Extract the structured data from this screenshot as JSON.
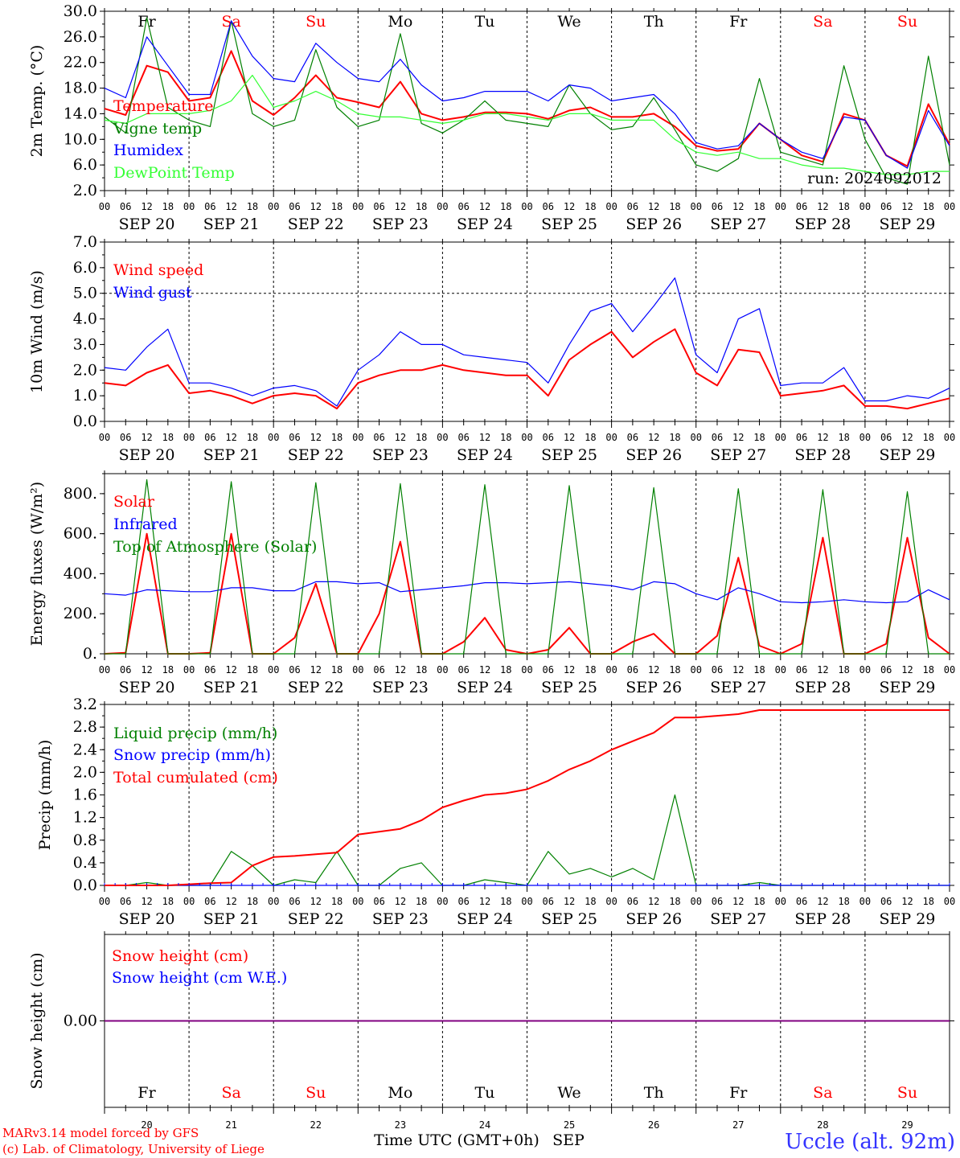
{
  "days": [
    "Fr",
    "Sa",
    "Su",
    "Mo",
    "Tu",
    "We",
    "Th",
    "Fr",
    "Sa",
    "Su"
  ],
  "weekend_flags": [
    false,
    true,
    true,
    false,
    false,
    false,
    false,
    false,
    true,
    true
  ],
  "date_labels": [
    "SEP 20",
    "SEP 21",
    "SEP 22",
    "SEP 23",
    "SEP 24",
    "SEP 25",
    "SEP 26",
    "SEP 27",
    "SEP 28",
    "SEP 29"
  ],
  "day_numbers": [
    "20",
    "21",
    "22",
    "23",
    "24",
    "25",
    "26",
    "27",
    "28",
    "29"
  ],
  "hour_ticks": [
    "00",
    "06",
    "12",
    "18"
  ],
  "colors": {
    "red": "#ff0000",
    "green": "#008000",
    "blue": "#0000ff",
    "lightgreen": "#33ff33",
    "weekend": "#ff0000",
    "weekday": "#000000",
    "purple": "#800080",
    "location": "#3333ff"
  },
  "footer": {
    "credit1": "MARv3.14 model forced by GFS",
    "credit2": "(c) Lab. of Climatology, University of Liege",
    "xlabel": "Time UTC (GMT+0h)",
    "month": "SEP",
    "location": "Uccle (alt. 92m)"
  },
  "chart_data": [
    {
      "type": "line",
      "ylabel": "2m Temp. (°C)",
      "ylim": [
        2,
        30
      ],
      "yticks": [
        "30.0",
        "26.0",
        "22.0",
        "18.0",
        "14.0",
        "10.0",
        "6.0",
        "2.0"
      ],
      "run_label": "run: 2024092012",
      "x_unit": "hours since 2024-09-20 00 UTC",
      "x": [
        0,
        6,
        12,
        18,
        24,
        30,
        36,
        42,
        48,
        54,
        60,
        66,
        72,
        78,
        84,
        90,
        96,
        102,
        108,
        114,
        120,
        126,
        132,
        138,
        144,
        150,
        156,
        162,
        168,
        174,
        180,
        186,
        192,
        198,
        204,
        210,
        216,
        222,
        228,
        234,
        240
      ],
      "series": [
        {
          "name": "Temperature",
          "color": "red",
          "values": [
            14.8,
            13.8,
            21.5,
            20.5,
            16.0,
            16.5,
            23.8,
            16.0,
            13.8,
            16.5,
            20.0,
            16.5,
            15.8,
            15.0,
            19.0,
            14.0,
            13.0,
            13.5,
            14.2,
            14.2,
            14.0,
            13.2,
            14.5,
            15.0,
            13.5,
            13.5,
            14.0,
            12.0,
            9.0,
            8.2,
            8.5,
            12.5,
            10.0,
            7.5,
            6.5,
            14.0,
            13.0,
            7.5,
            5.8,
            15.5,
            9.2
          ]
        },
        {
          "name": "Vigne temp",
          "color": "green",
          "values": [
            13.5,
            11.0,
            29.0,
            15.0,
            13.0,
            12.0,
            28.5,
            14.0,
            12.0,
            13.0,
            24.0,
            15.0,
            12.0,
            13.0,
            26.5,
            12.5,
            11.0,
            13.0,
            16.0,
            13.0,
            12.5,
            12.0,
            18.5,
            14.0,
            11.5,
            12.0,
            16.5,
            11.5,
            6.0,
            5.0,
            7.0,
            19.5,
            8.0,
            7.0,
            6.0,
            21.5,
            10.0,
            4.0,
            3.0,
            23.0,
            6.0
          ]
        },
        {
          "name": "Humidex",
          "color": "blue",
          "values": [
            18.0,
            16.5,
            26.0,
            21.5,
            17.0,
            17.0,
            28.5,
            23.0,
            19.5,
            19.0,
            25.0,
            22.0,
            19.5,
            19.0,
            22.5,
            18.5,
            16.0,
            16.5,
            17.5,
            17.5,
            17.5,
            16.0,
            18.5,
            18.0,
            16.0,
            16.5,
            17.0,
            14.0,
            9.5,
            8.5,
            9.0,
            12.5,
            10.0,
            8.0,
            7.0,
            13.5,
            13.0,
            7.5,
            5.5,
            14.5,
            9.0
          ]
        },
        {
          "name": "DewPoint Temp",
          "color": "lightgreen",
          "values": [
            13.0,
            12.5,
            14.0,
            14.0,
            14.0,
            14.5,
            16.0,
            20.0,
            15.0,
            16.0,
            17.5,
            16.0,
            14.0,
            13.5,
            13.5,
            13.0,
            12.5,
            13.0,
            14.0,
            14.0,
            13.5,
            13.0,
            14.0,
            14.0,
            13.0,
            13.0,
            13.0,
            10.0,
            8.0,
            7.5,
            8.0,
            7.0,
            7.0,
            6.0,
            5.5,
            5.5,
            5.0,
            4.5,
            4.5,
            5.0,
            5.0
          ]
        }
      ]
    },
    {
      "type": "line",
      "ylabel": "10m Wind (m/s)",
      "ylim": [
        0,
        7
      ],
      "yticks": [
        "7.0",
        "6.0",
        "5.0",
        "4.0",
        "3.0",
        "2.0",
        "1.0",
        "0.0"
      ],
      "reference_line": 5.0,
      "x": [
        0,
        6,
        12,
        18,
        24,
        30,
        36,
        42,
        48,
        54,
        60,
        66,
        72,
        78,
        84,
        90,
        96,
        102,
        108,
        114,
        120,
        126,
        132,
        138,
        144,
        150,
        156,
        162,
        168,
        174,
        180,
        186,
        192,
        198,
        204,
        210,
        216,
        222,
        228,
        234,
        240
      ],
      "series": [
        {
          "name": "Wind speed",
          "color": "red",
          "values": [
            1.5,
            1.4,
            1.9,
            2.2,
            1.1,
            1.2,
            1.0,
            0.7,
            1.0,
            1.1,
            1.0,
            0.5,
            1.5,
            1.8,
            2.0,
            2.0,
            2.2,
            2.0,
            1.9,
            1.8,
            1.8,
            1.0,
            2.4,
            3.0,
            3.5,
            2.5,
            3.1,
            3.6,
            1.9,
            1.4,
            2.8,
            2.7,
            1.0,
            1.1,
            1.2,
            1.4,
            0.6,
            0.6,
            0.5,
            0.7,
            0.9
          ]
        },
        {
          "name": "Wind gust",
          "color": "blue",
          "values": [
            2.1,
            2.0,
            2.9,
            3.6,
            1.5,
            1.5,
            1.3,
            1.0,
            1.3,
            1.4,
            1.2,
            0.6,
            2.0,
            2.6,
            3.5,
            3.0,
            3.0,
            2.6,
            2.5,
            2.4,
            2.3,
            1.5,
            3.0,
            4.3,
            4.6,
            3.5,
            4.5,
            5.6,
            2.6,
            1.9,
            4.0,
            4.4,
            1.4,
            1.5,
            1.5,
            2.1,
            0.8,
            0.8,
            1.0,
            0.9,
            1.3
          ]
        }
      ]
    },
    {
      "type": "line",
      "ylabel": "Energy fluxes (W/m²)",
      "ylim": [
        0,
        900
      ],
      "yticks": [
        "800.",
        "600.",
        "400.",
        "200.",
        "0."
      ],
      "x": [
        0,
        6,
        12,
        18,
        24,
        30,
        36,
        42,
        48,
        54,
        60,
        66,
        72,
        78,
        84,
        90,
        96,
        102,
        108,
        114,
        120,
        126,
        132,
        138,
        144,
        150,
        156,
        162,
        168,
        174,
        180,
        186,
        192,
        198,
        204,
        210,
        216,
        222,
        228,
        234,
        240
      ],
      "series": [
        {
          "name": "Solar",
          "color": "red",
          "values": [
            0,
            5,
            600,
            0,
            0,
            5,
            600,
            0,
            0,
            80,
            350,
            0,
            0,
            200,
            560,
            0,
            0,
            60,
            180,
            20,
            0,
            20,
            130,
            0,
            0,
            60,
            100,
            0,
            0,
            90,
            480,
            40,
            0,
            50,
            580,
            0,
            0,
            50,
            580,
            80,
            0
          ]
        },
        {
          "name": "Infrared",
          "color": "blue",
          "values": [
            300,
            293,
            320,
            315,
            310,
            310,
            330,
            330,
            315,
            315,
            360,
            360,
            350,
            355,
            310,
            320,
            330,
            340,
            355,
            355,
            350,
            355,
            360,
            350,
            340,
            320,
            360,
            350,
            300,
            270,
            330,
            300,
            260,
            255,
            260,
            270,
            260,
            255,
            260,
            320,
            270
          ]
        },
        {
          "name": "Top of Atmosphere (Solar)",
          "color": "green",
          "values": [
            0,
            0,
            870,
            0,
            0,
            0,
            860,
            0,
            0,
            0,
            855,
            0,
            0,
            0,
            850,
            0,
            0,
            0,
            845,
            0,
            0,
            0,
            840,
            0,
            0,
            0,
            830,
            0,
            0,
            0,
            825,
            0,
            0,
            0,
            820,
            0,
            0,
            0,
            810,
            0,
            0
          ]
        }
      ]
    },
    {
      "type": "line",
      "ylabel": "Precip (mm/h)",
      "ylim": [
        0,
        3.2
      ],
      "yticks": [
        "3.2",
        "2.8",
        "2.4",
        "2.0",
        "1.6",
        "1.2",
        "0.8",
        "0.4",
        "0.0"
      ],
      "x": [
        0,
        6,
        12,
        18,
        24,
        30,
        36,
        42,
        48,
        54,
        60,
        66,
        72,
        78,
        84,
        90,
        96,
        102,
        108,
        114,
        120,
        126,
        132,
        138,
        144,
        150,
        156,
        162,
        168,
        174,
        180,
        186,
        192,
        198,
        204,
        210,
        216,
        222,
        228,
        234,
        240
      ],
      "series": [
        {
          "name": "Liquid precip (mm/h)",
          "color": "green",
          "values": [
            0,
            0,
            0.05,
            0,
            0,
            0,
            0.6,
            0.35,
            0,
            0.1,
            0.05,
            0.6,
            0,
            0,
            0.3,
            0.4,
            0,
            0,
            0.1,
            0.05,
            0,
            0.6,
            0.2,
            0.3,
            0.15,
            0.3,
            0.1,
            1.6,
            0,
            0,
            0,
            0.05,
            0,
            0,
            0,
            0,
            0,
            0,
            0,
            0,
            0
          ]
        },
        {
          "name": "Snow precip (mm/h)",
          "color": "blue",
          "values": [
            0,
            0,
            0,
            0,
            0,
            0,
            0,
            0,
            0,
            0,
            0,
            0,
            0,
            0,
            0,
            0,
            0,
            0,
            0,
            0,
            0,
            0,
            0,
            0,
            0,
            0,
            0,
            0,
            0,
            0,
            0,
            0,
            0,
            0,
            0,
            0,
            0,
            0,
            0,
            0,
            0
          ]
        },
        {
          "name": "Total cumulated (cm)",
          "color": "red",
          "values": [
            0,
            0,
            0,
            0,
            0.02,
            0.04,
            0.05,
            0.35,
            0.5,
            0.52,
            0.55,
            0.58,
            0.9,
            0.95,
            1.0,
            1.15,
            1.38,
            1.5,
            1.6,
            1.63,
            1.7,
            1.85,
            2.05,
            2.2,
            2.4,
            2.55,
            2.7,
            2.97,
            2.97,
            3.0,
            3.03,
            3.1,
            3.1,
            3.1,
            3.1,
            3.1,
            3.1,
            3.1,
            3.1,
            3.1,
            3.1
          ]
        }
      ]
    },
    {
      "type": "line",
      "ylabel": "Snow height (cm)",
      "yticks": [
        "0.00"
      ],
      "x": [
        0,
        240
      ],
      "series": [
        {
          "name": "Snow height (cm)",
          "color": "red",
          "values": [
            0,
            0
          ]
        },
        {
          "name": "Snow height (cm W.E.)",
          "color": "blue",
          "values": [
            0,
            0
          ]
        }
      ]
    }
  ]
}
